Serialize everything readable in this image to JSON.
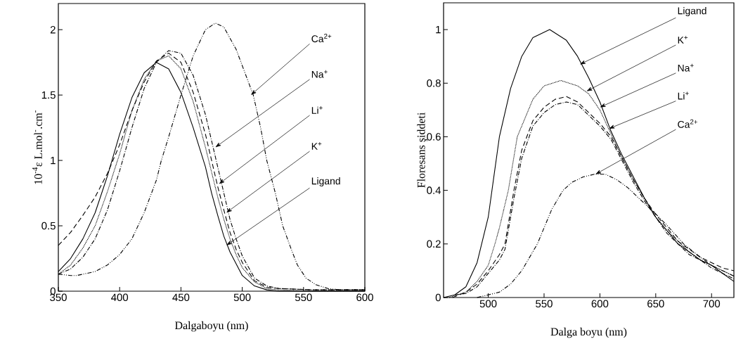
{
  "chart_data": [
    {
      "type": "line",
      "xlabel": "Dalgaboyu (nm)",
      "ylabel": "10$^{-4}$ε L.mol$^{-}$.cm$^{-}$",
      "xlim": [
        350,
        600
      ],
      "ylim": [
        0,
        2.2
      ],
      "xticks": [
        350,
        400,
        450,
        500,
        550,
        600
      ],
      "yticks": [
        0,
        0.5,
        1,
        1.5,
        2
      ],
      "series": [
        {
          "color": "#000000",
          "line_style": "solid",
          "x": [
            350,
            360,
            370,
            380,
            390,
            400,
            410,
            420,
            430,
            440,
            450,
            460,
            465,
            470,
            475,
            480,
            485,
            490,
            500,
            510,
            520,
            530,
            560,
            600
          ],
          "values": [
            0.15,
            0.25,
            0.4,
            0.6,
            0.88,
            1.2,
            1.48,
            1.67,
            1.75,
            1.7,
            1.52,
            1.25,
            1.1,
            0.95,
            0.75,
            0.58,
            0.42,
            0.3,
            0.12,
            0.04,
            0.01,
            0,
            0,
            0
          ]
        },
        {
          "color": "#000000",
          "line_style": "dotted",
          "x": [
            350,
            360,
            370,
            380,
            390,
            400,
            410,
            420,
            430,
            440,
            450,
            460,
            470,
            480,
            485,
            490,
            495,
            500,
            510,
            520,
            530,
            560,
            600
          ],
          "values": [
            0.13,
            0.2,
            0.33,
            0.5,
            0.76,
            1.05,
            1.38,
            1.62,
            1.76,
            1.8,
            1.7,
            1.45,
            1.1,
            0.72,
            0.55,
            0.4,
            0.28,
            0.18,
            0.07,
            0.02,
            0.01,
            0,
            0
          ]
        },
        {
          "color": "#000000",
          "line_style": "dashed",
          "x": [
            350,
            360,
            370,
            380,
            390,
            400,
            410,
            420,
            430,
            440,
            450,
            460,
            470,
            480,
            485,
            490,
            495,
            500,
            510,
            520,
            530,
            560,
            600
          ],
          "values": [
            0.35,
            0.45,
            0.58,
            0.72,
            0.9,
            1.12,
            1.38,
            1.6,
            1.76,
            1.82,
            1.75,
            1.52,
            1.2,
            0.8,
            0.62,
            0.45,
            0.32,
            0.22,
            0.08,
            0.03,
            0.02,
            0.01,
            0.01
          ]
        },
        {
          "color": "#000000",
          "line_style": "dashdot",
          "x": [
            350,
            360,
            370,
            380,
            390,
            400,
            410,
            420,
            430,
            440,
            450,
            460,
            470,
            480,
            485,
            490,
            495,
            500,
            510,
            520,
            530,
            560,
            600
          ],
          "values": [
            0.13,
            0.17,
            0.26,
            0.4,
            0.62,
            0.92,
            1.25,
            1.55,
            1.75,
            1.84,
            1.82,
            1.65,
            1.35,
            0.95,
            0.75,
            0.55,
            0.4,
            0.27,
            0.1,
            0.04,
            0.02,
            0.01,
            0.01
          ]
        },
        {
          "color": "#000000",
          "line_style": "dashdotdot",
          "x": [
            350,
            360,
            365,
            370,
            380,
            390,
            400,
            410,
            415,
            420,
            430,
            434,
            440,
            450,
            460,
            470,
            478,
            485,
            495,
            503,
            509,
            515,
            520,
            527,
            533,
            540,
            545,
            552,
            560,
            570,
            580,
            600
          ],
          "values": [
            0.13,
            0.12,
            0.12,
            0.13,
            0.15,
            0.2,
            0.28,
            0.4,
            0.5,
            0.6,
            0.85,
            1.0,
            1.18,
            1.5,
            1.8,
            2.0,
            2.05,
            2.02,
            1.85,
            1.65,
            1.5,
            1.25,
            1.0,
            0.75,
            0.5,
            0.32,
            0.2,
            0.1,
            0.05,
            0.02,
            0.01,
            0.01
          ]
        }
      ],
      "annotations": [
        {
          "text": "Ca$^{2+}$",
          "x": 507,
          "y": 1.5
        },
        {
          "text": "Na$^{+}$",
          "x": 478,
          "y": 1.1
        },
        {
          "text": "Li$^{+}$",
          "x": 481,
          "y": 0.82
        },
        {
          "text": "K$^{+}$",
          "x": 487,
          "y": 0.6
        },
        {
          "text": "Ligand",
          "x": 487,
          "y": 0.35
        }
      ]
    },
    {
      "type": "line",
      "xlabel": "Dalga boyu (nm)",
      "ylabel": "Floresans şiddeti",
      "xlim": [
        460,
        720
      ],
      "ylim": [
        0,
        1.1
      ],
      "xticks": [
        500,
        550,
        600,
        650,
        700
      ],
      "yticks": [
        0,
        0.2,
        0.4,
        0.6,
        0.8,
        1
      ],
      "series": [
        {
          "color": "#000000",
          "line_style": "solid",
          "x": [
            460,
            470,
            480,
            490,
            500,
            510,
            520,
            530,
            540,
            555,
            570,
            580,
            590,
            600,
            610,
            620,
            630,
            640,
            650,
            660,
            670,
            680,
            690,
            700,
            710,
            720
          ],
          "values": [
            0,
            0.01,
            0.04,
            0.13,
            0.3,
            0.6,
            0.78,
            0.9,
            0.97,
            1.0,
            0.96,
            0.9,
            0.82,
            0.73,
            0.62,
            0.53,
            0.45,
            0.37,
            0.3,
            0.25,
            0.2,
            0.17,
            0.14,
            0.12,
            0.09,
            0.06
          ]
        },
        {
          "color": "#000000",
          "line_style": "dotted",
          "x": [
            465,
            480,
            490,
            500,
            506,
            510,
            518,
            526,
            540,
            550,
            565,
            580,
            590,
            600,
            610,
            620,
            630,
            640,
            650,
            660,
            670,
            680,
            690,
            700,
            710,
            720
          ],
          "values": [
            0,
            0.02,
            0.06,
            0.12,
            0.2,
            0.26,
            0.4,
            0.6,
            0.74,
            0.79,
            0.81,
            0.79,
            0.76,
            0.7,
            0.61,
            0.52,
            0.44,
            0.37,
            0.3,
            0.25,
            0.21,
            0.17,
            0.14,
            0.12,
            0.1,
            0.08
          ]
        },
        {
          "color": "#000000",
          "line_style": "dashed",
          "x": [
            468,
            480,
            490,
            500,
            510,
            515,
            523,
            530,
            540,
            550,
            560,
            570,
            580,
            590,
            600,
            610,
            620,
            630,
            640,
            650,
            660,
            670,
            680,
            690,
            700,
            710,
            720
          ],
          "values": [
            0,
            0.02,
            0.05,
            0.1,
            0.16,
            0.2,
            0.4,
            0.55,
            0.66,
            0.71,
            0.74,
            0.75,
            0.73,
            0.69,
            0.65,
            0.6,
            0.52,
            0.44,
            0.37,
            0.31,
            0.26,
            0.21,
            0.18,
            0.15,
            0.13,
            0.11,
            0.1
          ]
        },
        {
          "color": "#000000",
          "line_style": "dashdot",
          "x": [
            470,
            480,
            490,
            500,
            510,
            515,
            523,
            530,
            540,
            550,
            560,
            570,
            580,
            590,
            600,
            610,
            620,
            630,
            640,
            650,
            660,
            670,
            680,
            690,
            700,
            710,
            720
          ],
          "values": [
            0.01,
            0.015,
            0.04,
            0.09,
            0.14,
            0.18,
            0.37,
            0.52,
            0.64,
            0.69,
            0.72,
            0.73,
            0.72,
            0.68,
            0.64,
            0.59,
            0.51,
            0.43,
            0.36,
            0.3,
            0.24,
            0.2,
            0.16,
            0.14,
            0.11,
            0.09,
            0.07
          ]
        },
        {
          "color": "#000000",
          "line_style": "dashdotdot",
          "x": [
            490,
            500,
            510,
            520,
            530,
            537,
            544,
            550,
            557,
            567,
            575,
            585,
            595,
            605,
            615,
            625,
            635,
            648,
            660,
            675,
            690,
            700,
            710,
            720
          ],
          "values": [
            0,
            0.01,
            0.02,
            0.05,
            0.1,
            0.15,
            0.2,
            0.26,
            0.33,
            0.4,
            0.43,
            0.45,
            0.46,
            0.46,
            0.44,
            0.41,
            0.37,
            0.32,
            0.27,
            0.2,
            0.15,
            0.12,
            0.1,
            0.08
          ]
        }
      ],
      "annotations": [
        {
          "text": "Ligand",
          "x": 582,
          "y": 0.87
        },
        {
          "text": "K$^{+}$",
          "x": 588,
          "y": 0.77
        },
        {
          "text": "Na$^{+}$",
          "x": 600,
          "y": 0.71
        },
        {
          "text": "Li$^{+}$",
          "x": 608,
          "y": 0.63
        },
        {
          "text": "Ca$^{2+}$",
          "x": 596,
          "y": 0.46
        }
      ]
    }
  ]
}
